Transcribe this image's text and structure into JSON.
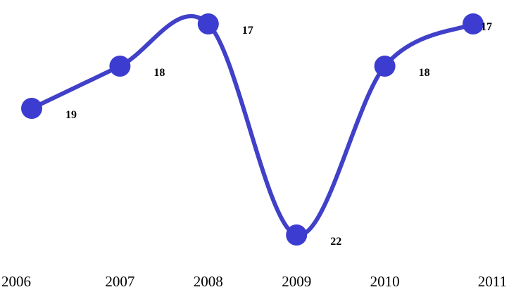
{
  "chart_data": {
    "type": "line",
    "x": [
      "2006",
      "2007",
      "2008",
      "2009",
      "2010",
      "2011"
    ],
    "series": [
      {
        "values": [
          19,
          18,
          17,
          22,
          18,
          17
        ]
      }
    ],
    "data_labels": [
      "19",
      "18",
      "17",
      "22",
      "18",
      "17"
    ],
    "y_inverted": true,
    "ylim": [
      16.6,
      22
    ],
    "grid": false,
    "line_color": "#4040c8",
    "marker_color": "#3c3cd0"
  }
}
